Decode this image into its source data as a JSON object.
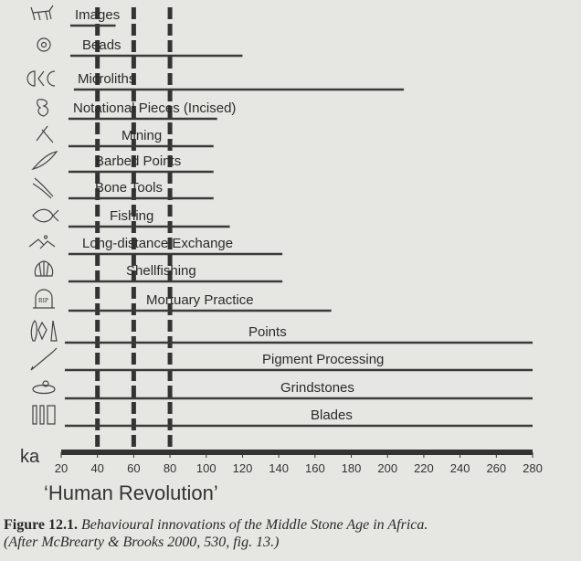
{
  "chart_data": {
    "type": "bar",
    "orientation": "horizontal-range",
    "title": "Behavioural innovations of the Middle Stone Age in Africa",
    "xlabel": "ka",
    "xlim": [
      20,
      280
    ],
    "xticks": [
      20,
      40,
      60,
      80,
      100,
      120,
      140,
      160,
      180,
      200,
      220,
      240,
      260,
      280
    ],
    "reference_lines": [
      40,
      60,
      80
    ],
    "annotation": "‘Human Revolution’",
    "categories": [
      "Images",
      "Beads",
      "Microliths",
      "Notational Pieces (Incised)",
      "Mining",
      "Barbed Points",
      "Bone Tools",
      "Fishing",
      "Long-distance Exchange",
      "Shellfishing",
      "Mortuary Practice",
      "Points",
      "Pigment Processing",
      "Grindstones",
      "Blades"
    ],
    "icons": [
      "animal-painting-icon",
      "bead-icon",
      "microliths-icon",
      "incised-piece-icon",
      "pick-icon",
      "barbed-point-icon",
      "bone-tool-icon",
      "fish-icon",
      "hands-exchange-icon",
      "shell-icon",
      "gravestone-icon",
      "stone-points-icon",
      "brush-icon",
      "grindstone-icon",
      "blades-icon"
    ],
    "ranges": [
      [
        25,
        50
      ],
      [
        25,
        120
      ],
      [
        27,
        209
      ],
      [
        24,
        106
      ],
      [
        24,
        104
      ],
      [
        24,
        104
      ],
      [
        24,
        104
      ],
      [
        24,
        113
      ],
      [
        24,
        142
      ],
      [
        24,
        142
      ],
      [
        24,
        169
      ],
      [
        22,
        280
      ],
      [
        22,
        280
      ],
      [
        22,
        280
      ],
      [
        22,
        280
      ]
    ]
  },
  "caption": {
    "label": "Figure 12.1.",
    "text": "Behavioural innovations of the Middle Stone Age in Africa.",
    "source": "(After McBrearty & Brooks 2000, 530, fig. 13.)"
  }
}
